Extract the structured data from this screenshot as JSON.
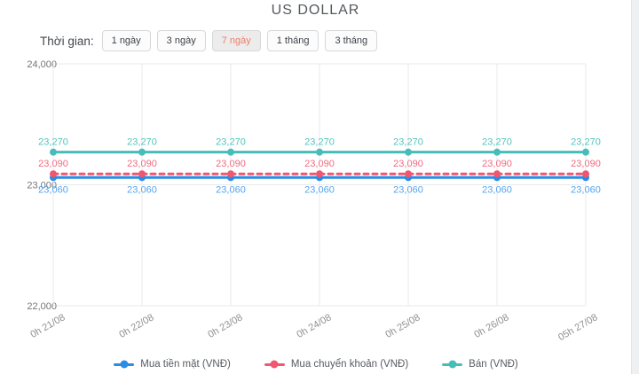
{
  "page": {
    "title": "US DOLLAR"
  },
  "controls": {
    "label": "Thời gian:",
    "selected_index": 2,
    "buttons": [
      {
        "label": "1 ngày"
      },
      {
        "label": "3 ngày"
      },
      {
        "label": "7 ngày"
      },
      {
        "label": "1 tháng"
      },
      {
        "label": "3 tháng"
      }
    ]
  },
  "colors": {
    "accent_selected_text": "#e8806a",
    "selected_button_bg": "#ececec",
    "grid_line": "#e8e9ea",
    "axis_text": "#8f9092"
  },
  "chart_data": {
    "type": "line",
    "title": "US DOLLAR",
    "x": [
      "0h 21/08",
      "0h 22/08",
      "0h 23/08",
      "0h 24/08",
      "0h 25/08",
      "0h 26/08",
      "05h 27/08"
    ],
    "series": [
      {
        "name": "Mua tiền mặt (VNĐ)",
        "color": "#2b8ce4",
        "label_color": "#54a5f1",
        "style": "solid",
        "label_position": "bottom",
        "values": [
          23060,
          23060,
          23060,
          23060,
          23060,
          23060,
          23060
        ]
      },
      {
        "name": "Mua chuyển khoản (VNĐ)",
        "color": "#f0566f",
        "label_color": "#f36b80",
        "style": "dashed",
        "label_position": "top",
        "values": [
          23090,
          23090,
          23090,
          23090,
          23090,
          23090,
          23090
        ]
      },
      {
        "name": "Bán (VNĐ)",
        "color": "#47bdb9",
        "label_color": "#4fc4bd",
        "style": "solid",
        "label_position": "top",
        "values": [
          23270,
          23270,
          23270,
          23270,
          23270,
          23270,
          23270
        ]
      }
    ],
    "ylim": [
      22000,
      24000
    ],
    "yticks": [
      22000,
      23000,
      24000
    ],
    "grid": true,
    "value_labels": true,
    "legend_position": "bottom",
    "x_label_rotation": -30
  }
}
